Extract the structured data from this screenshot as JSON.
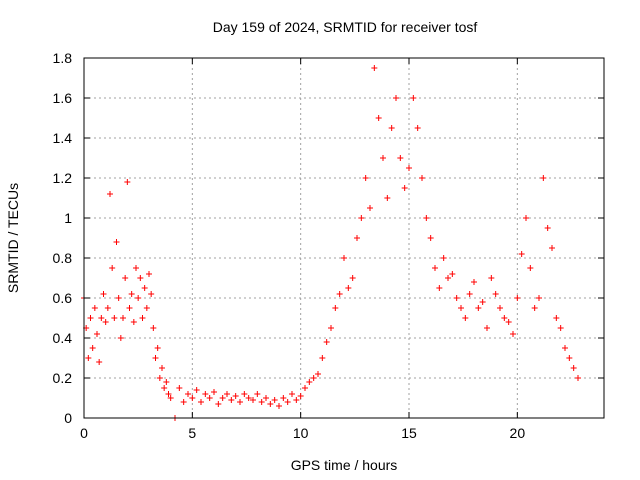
{
  "chart_data": {
    "type": "scatter",
    "title": "Day 159 of 2024, SRMTID for receiver tosf",
    "xlabel": "GPS time / hours",
    "ylabel": "SRMTID / TECUs",
    "xlim": [
      0,
      24
    ],
    "ylim": [
      0,
      1.8
    ],
    "x_ticks": [
      0,
      5,
      10,
      15,
      20
    ],
    "x_tick_labels": [
      "0",
      "5",
      "10",
      "15",
      "20"
    ],
    "y_ticks": [
      0,
      0.2,
      0.4,
      0.6,
      0.8,
      1.0,
      1.2,
      1.4,
      1.6,
      1.8
    ],
    "y_tick_labels": [
      "0",
      "0.2",
      "0.4",
      "0.6",
      "0.8",
      "1",
      "1.2",
      "1.4",
      "1.6",
      "1.8"
    ],
    "grid": true,
    "marker": "plus",
    "series": [
      {
        "name": "SRMTID",
        "color": "#ff0000",
        "x": [
          0.0,
          0.1,
          0.2,
          0.3,
          0.4,
          0.5,
          0.6,
          0.7,
          0.8,
          0.9,
          1.0,
          1.1,
          1.2,
          1.3,
          1.4,
          1.5,
          1.6,
          1.7,
          1.8,
          1.9,
          2.0,
          2.1,
          2.2,
          2.3,
          2.4,
          2.5,
          2.6,
          2.7,
          2.8,
          2.9,
          3.0,
          3.1,
          3.2,
          3.3,
          3.4,
          3.5,
          3.6,
          3.7,
          3.8,
          3.9,
          4.0,
          4.2,
          4.4,
          4.6,
          4.8,
          5.0,
          5.2,
          5.4,
          5.6,
          5.8,
          6.0,
          6.2,
          6.4,
          6.6,
          6.8,
          7.0,
          7.2,
          7.4,
          7.6,
          7.8,
          8.0,
          8.2,
          8.4,
          8.6,
          8.8,
          9.0,
          9.2,
          9.4,
          9.6,
          9.8,
          10.0,
          10.2,
          10.4,
          10.6,
          10.8,
          11.0,
          11.2,
          11.4,
          11.6,
          11.8,
          12.0,
          12.2,
          12.4,
          12.6,
          12.8,
          13.0,
          13.2,
          13.4,
          13.6,
          13.8,
          14.0,
          14.2,
          14.4,
          14.6,
          14.8,
          15.0,
          15.2,
          15.4,
          15.6,
          15.8,
          16.0,
          16.2,
          16.4,
          16.6,
          16.8,
          17.0,
          17.2,
          17.4,
          17.6,
          17.8,
          18.0,
          18.2,
          18.4,
          18.6,
          18.8,
          19.0,
          19.2,
          19.4,
          19.6,
          19.8,
          20.0,
          20.2,
          20.4,
          20.6,
          20.8,
          21.0,
          21.2,
          21.4,
          21.6,
          21.8,
          22.0,
          22.2,
          22.4,
          22.6,
          22.8
        ],
        "y": [
          0.6,
          0.45,
          0.3,
          0.5,
          0.35,
          0.55,
          0.42,
          0.28,
          0.5,
          0.62,
          0.48,
          0.55,
          1.12,
          0.75,
          0.5,
          0.88,
          0.6,
          0.4,
          0.5,
          0.7,
          1.18,
          0.55,
          0.62,
          0.48,
          0.75,
          0.6,
          0.7,
          0.5,
          0.65,
          0.55,
          0.72,
          0.62,
          0.45,
          0.3,
          0.35,
          0.2,
          0.25,
          0.15,
          0.18,
          0.12,
          0.1,
          0.0,
          0.15,
          0.08,
          0.12,
          0.1,
          0.14,
          0.08,
          0.12,
          0.1,
          0.13,
          0.07,
          0.1,
          0.12,
          0.09,
          0.11,
          0.08,
          0.12,
          0.1,
          0.09,
          0.12,
          0.08,
          0.1,
          0.07,
          0.09,
          0.06,
          0.1,
          0.08,
          0.12,
          0.09,
          0.11,
          0.15,
          0.18,
          0.2,
          0.22,
          0.3,
          0.38,
          0.45,
          0.55,
          0.62,
          0.8,
          0.65,
          0.7,
          0.9,
          1.0,
          1.2,
          1.05,
          1.75,
          1.5,
          1.3,
          1.1,
          1.45,
          1.6,
          1.3,
          1.15,
          1.25,
          1.6,
          1.45,
          1.2,
          1.0,
          0.9,
          0.75,
          0.65,
          0.8,
          0.7,
          0.72,
          0.6,
          0.55,
          0.5,
          0.62,
          0.68,
          0.55,
          0.58,
          0.45,
          0.7,
          0.62,
          0.55,
          0.5,
          0.48,
          0.42,
          0.6,
          0.82,
          1.0,
          0.75,
          0.55,
          0.6,
          1.2,
          0.95,
          0.85,
          0.5,
          0.45,
          0.35,
          0.3,
          0.25,
          0.2
        ]
      }
    ]
  }
}
